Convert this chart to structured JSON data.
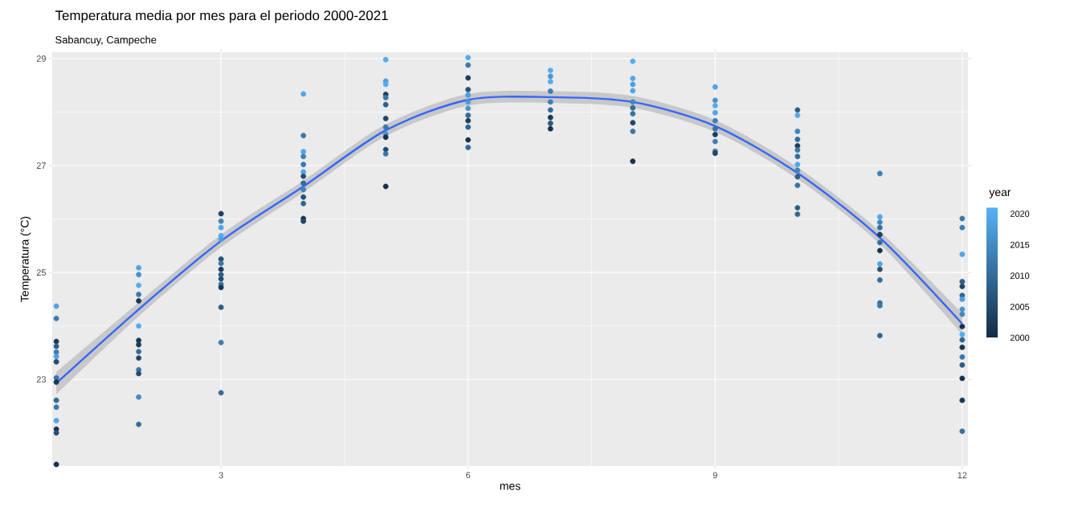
{
  "chart_data": {
    "type": "scatter",
    "title": "Temperatura media por mes para el periodo 2000-2021",
    "subtitle": "Sabancuy, Campeche",
    "xlabel": "mes",
    "ylabel": "Temperatura (°C)",
    "clabel": "year",
    "xlim": [
      0.95,
      12.07
    ],
    "ylim": [
      21.38,
      29.12
    ],
    "xticks": [
      3,
      6,
      9,
      12
    ],
    "yticks": [
      23,
      25,
      27,
      29
    ],
    "clim": [
      2000,
      2021
    ],
    "cticks": [
      2000,
      2005,
      2010,
      2015,
      2020
    ],
    "grid": true,
    "series": [
      {
        "marker": "circle",
        "x": [
          1,
          1,
          1,
          1,
          1,
          1,
          1,
          1,
          1,
          1,
          1,
          1,
          1,
          1,
          1,
          2,
          2,
          2,
          2,
          2,
          2,
          2,
          2,
          2,
          2,
          2,
          2,
          2,
          2,
          3,
          3,
          3,
          3,
          3,
          3,
          3,
          3,
          3,
          3,
          3,
          3,
          3,
          3,
          3,
          4,
          4,
          4,
          4,
          4,
          4,
          4,
          4,
          4,
          4,
          4,
          4,
          4,
          5,
          5,
          5,
          5,
          5,
          5,
          5,
          5,
          5,
          5,
          5,
          5,
          5,
          6,
          6,
          6,
          6,
          6,
          6,
          6,
          6,
          6,
          6,
          6,
          6,
          7,
          7,
          7,
          7,
          7,
          7,
          7,
          7,
          7,
          8,
          8,
          8,
          8,
          8,
          8,
          8,
          8,
          8,
          8,
          9,
          9,
          9,
          9,
          9,
          9,
          9,
          9,
          9,
          9,
          10,
          10,
          10,
          10,
          10,
          10,
          10,
          10,
          10,
          10,
          10,
          10,
          10,
          11,
          11,
          11,
          11,
          11,
          11,
          11,
          11,
          11,
          11,
          11,
          11,
          11,
          12,
          12,
          12,
          12,
          12,
          12,
          12,
          12,
          12,
          12,
          12,
          12,
          12,
          12,
          12,
          12,
          12,
          12
        ],
        "values": [
          24.37,
          24.14,
          23.71,
          23.62,
          23.51,
          23.43,
          23.33,
          23.03,
          22.95,
          22.61,
          22.48,
          22.23,
          22.07,
          22.0,
          21.41,
          25.09,
          24.96,
          24.76,
          24.59,
          24.47,
          24.0,
          23.73,
          23.65,
          23.52,
          23.4,
          23.18,
          23.11,
          22.67,
          22.16,
          26.1,
          25.96,
          25.84,
          25.69,
          25.62,
          25.25,
          25.17,
          25.06,
          24.96,
          24.88,
          24.78,
          24.72,
          24.35,
          23.69,
          22.75,
          28.34,
          27.56,
          27.26,
          27.17,
          27.02,
          26.88,
          26.8,
          26.67,
          26.55,
          26.41,
          26.29,
          26.01,
          25.96,
          28.98,
          28.58,
          28.52,
          28.33,
          28.27,
          28.14,
          27.88,
          27.72,
          27.59,
          27.53,
          27.3,
          27.22,
          26.61,
          29.02,
          28.88,
          28.64,
          28.42,
          28.32,
          28.19,
          28.07,
          27.94,
          27.84,
          27.72,
          27.48,
          27.34,
          28.78,
          28.67,
          28.57,
          28.39,
          28.19,
          28.04,
          27.9,
          27.79,
          27.69,
          28.95,
          28.63,
          28.52,
          28.4,
          28.19,
          28.08,
          27.97,
          27.8,
          27.64,
          27.08,
          28.47,
          28.22,
          28.12,
          27.99,
          27.84,
          27.69,
          27.58,
          27.45,
          27.27,
          27.23,
          28.04,
          27.94,
          27.64,
          27.49,
          27.37,
          27.29,
          27.17,
          27.02,
          26.91,
          26.79,
          26.63,
          26.21,
          26.09,
          26.85,
          26.04,
          25.94,
          25.84,
          25.71,
          25.56,
          25.41,
          25.16,
          25.06,
          24.86,
          24.43,
          24.38,
          23.82,
          26.01,
          25.84,
          25.34,
          24.83,
          24.74,
          24.57,
          24.5,
          24.31,
          24.22,
          23.99,
          23.84,
          23.74,
          23.6,
          23.42,
          23.27,
          23.02,
          22.61,
          22.03
        ],
        "colors": [
          "#50a4e6",
          "#3978aa",
          "#1d3e5d",
          "#2d5e88",
          "#3c7eb2",
          "#4c9edd",
          "#234b6e",
          "#3978aa",
          "#193854",
          "#336b99",
          "#3978aa",
          "#50a4e6",
          "#16314c",
          "#265176",
          "#16314c",
          "#50a4e6",
          "#4691cc",
          "#53abee",
          "#3978aa",
          "#193854",
          "#53abee",
          "#193854",
          "#1d3e5d",
          "#336b99",
          "#204565",
          "#3978aa",
          "#234b6e",
          "#438bc4",
          "#336b99",
          "#1d3e5d",
          "#4084bb",
          "#50a4e6",
          "#53abee",
          "#4c9edd",
          "#265176",
          "#3978aa",
          "#1d3e5d",
          "#2d5e88",
          "#234b6e",
          "#3978aa",
          "#193854",
          "#2d5e88",
          "#3c7eb2",
          "#336b99",
          "#50a4e6",
          "#3978aa",
          "#50a4e6",
          "#3c7eb2",
          "#3978aa",
          "#50a4e6",
          "#234b6e",
          "#336b99",
          "#4084bb",
          "#265176",
          "#306490",
          "#193854",
          "#204565",
          "#53abee",
          "#4c9edd",
          "#53abee",
          "#1d3e5d",
          "#3978aa",
          "#2d5e88",
          "#204565",
          "#3978aa",
          "#4691cc",
          "#16314c",
          "#234b6e",
          "#3978aa",
          "#16314c",
          "#53abee",
          "#3978aa",
          "#1d3e5d",
          "#265176",
          "#4c9edd",
          "#4997d5",
          "#4691cc",
          "#336b99",
          "#1d3e5d",
          "#306490",
          "#16314c",
          "#336b99",
          "#53abee",
          "#4997d5",
          "#53abee",
          "#3c7eb2",
          "#3c7eb2",
          "#336b99",
          "#193854",
          "#29587f",
          "#16314c",
          "#53abee",
          "#50a4e6",
          "#4c9edd",
          "#50a4e6",
          "#4084bb",
          "#336b99",
          "#3671a1",
          "#204565",
          "#3978aa",
          "#16314c",
          "#50a4e6",
          "#4691cc",
          "#53abee",
          "#50a4e6",
          "#3c7eb2",
          "#3671a1",
          "#1d3e5d",
          "#3c7eb2",
          "#3978aa",
          "#204565",
          "#2d5e88",
          "#53abee",
          "#4084bb",
          "#336b99",
          "#1d3e5d",
          "#3978aa",
          "#336b99",
          "#50a4e6",
          "#4084bb",
          "#2d5e88",
          "#3671a1",
          "#2d5e88",
          "#306490",
          "#3c7eb2",
          "#50a4e6",
          "#4084bb",
          "#3671a1",
          "#1d3e5d",
          "#336b99",
          "#16314c",
          "#50a4e6",
          "#265176",
          "#336b99",
          "#3671a1",
          "#3978aa",
          "#306490",
          "#3978aa",
          "#3c7eb2",
          "#50a4e6",
          "#2d5e88",
          "#204565",
          "#306490",
          "#4c9edd",
          "#4691cc",
          "#438bc4",
          "#16314c",
          "#53abee",
          "#306490",
          "#193854",
          "#3978aa",
          "#2d5e88",
          "#16314c",
          "#193854",
          "#3671a1"
        ],
        "cvalues": [
          2019,
          2012,
          2003,
          2008,
          2013,
          2018,
          2005,
          2012,
          2002,
          2010,
          2012,
          2019,
          2001,
          2006,
          2001,
          2019,
          2016,
          2020,
          2012,
          2002,
          2020,
          2002,
          2003,
          2010,
          2004,
          2012,
          2005,
          2015,
          2010,
          2003,
          2014,
          2019,
          2020,
          2018,
          2006,
          2012,
          2003,
          2008,
          2005,
          2012,
          2002,
          2008,
          2013,
          2010,
          2019,
          2012,
          2019,
          2013,
          2012,
          2019,
          2005,
          2010,
          2014,
          2006,
          2009,
          2002,
          2004,
          2020,
          2018,
          2020,
          2003,
          2012,
          2008,
          2004,
          2012,
          2016,
          2001,
          2005,
          2012,
          2001,
          2020,
          2012,
          2003,
          2006,
          2018,
          2017,
          2016,
          2010,
          2003,
          2009,
          2001,
          2010,
          2020,
          2017,
          2020,
          2013,
          2013,
          2010,
          2002,
          2007,
          2001,
          2020,
          2019,
          2018,
          2019,
          2014,
          2010,
          2011,
          2004,
          2012,
          2001,
          2019,
          2016,
          2020,
          2019,
          2013,
          2011,
          2003,
          2013,
          2012,
          2004,
          2008,
          2020,
          2014,
          2010,
          2003,
          2012,
          2010,
          2019,
          2014,
          2008,
          2011,
          2008,
          2009,
          2013,
          2019,
          2014,
          2011,
          2003,
          2010,
          2001,
          2019,
          2006,
          2010,
          2011,
          2012,
          2009,
          2012,
          2013,
          2019,
          2008,
          2004,
          2009,
          2018,
          2016,
          2015,
          2001,
          2020,
          2009,
          2002,
          2012,
          2008,
          2001,
          2002,
          2011
        ]
      },
      {
        "type": "line",
        "color": "#3366ff",
        "x": [
          1,
          2,
          3,
          4,
          5,
          6,
          7,
          8,
          9,
          10,
          11,
          12
        ],
        "values": [
          22.93,
          24.31,
          25.59,
          26.61,
          27.66,
          28.23,
          28.28,
          28.19,
          27.74,
          26.86,
          25.65,
          24.04
        ],
        "lower": [
          22.72,
          24.18,
          25.47,
          26.5,
          27.55,
          28.12,
          28.17,
          28.08,
          27.63,
          26.75,
          25.53,
          23.84
        ],
        "upper": [
          23.14,
          24.44,
          25.71,
          26.72,
          27.77,
          28.34,
          28.39,
          28.3,
          27.85,
          26.97,
          25.77,
          24.24
        ]
      }
    ]
  }
}
